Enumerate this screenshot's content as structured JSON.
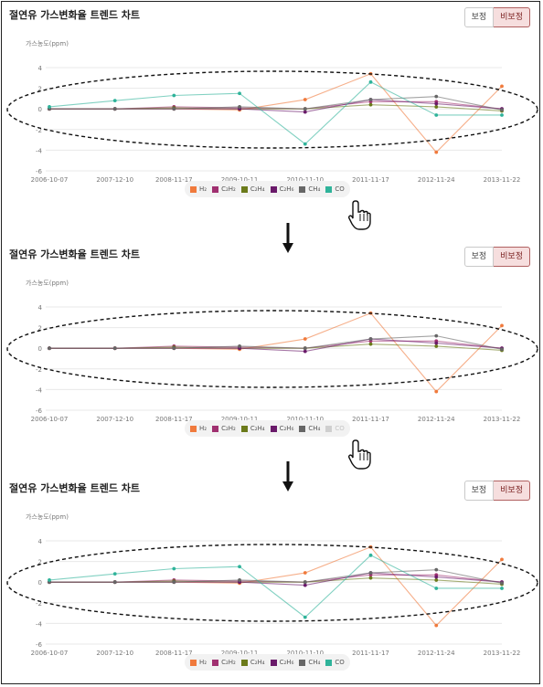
{
  "screens": [
    {
      "title": "절연유 가스변화율 트렌드 차트",
      "toggle": {
        "left": "보정",
        "right": "비보정",
        "active": "right"
      },
      "ylabel": "가스농도(ppm)",
      "hidden": [],
      "cursor_on": "CO"
    },
    {
      "title": "절연유 가스변화율 트렌드 차트",
      "toggle": {
        "left": "보정",
        "right": "비보정",
        "active": "right"
      },
      "ylabel": "가스농도(ppm)",
      "hidden": [
        "CO"
      ],
      "cursor_on": "CO"
    },
    {
      "title": "절연유 가스변화율 트렌드 차트",
      "toggle": {
        "left": "보정",
        "right": "비보정",
        "active": "right"
      },
      "ylabel": "가스농도(ppm)",
      "hidden": [],
      "cursor_on": ""
    }
  ],
  "chart_data": {
    "type": "line",
    "categories": [
      "2006-10-07",
      "2007-12-10",
      "2008-11-17",
      "2009-10-11",
      "2010-11-10",
      "2011-11-17",
      "2012-11-24",
      "2013-11-22"
    ],
    "x": [
      0,
      1,
      1.9,
      2.9,
      3.9,
      4.9,
      5.9,
      6.9
    ],
    "ylim": [
      -6,
      4
    ],
    "yticks": [
      4,
      2,
      0,
      -2,
      -4,
      -6
    ],
    "ylabel": "가스농도(ppm)",
    "grid": true,
    "legend_position": "bottom-center",
    "series": [
      {
        "name": "H₂",
        "color": "#f07a3c",
        "values": [
          0,
          0,
          0,
          -0.1,
          0.9,
          3.4,
          -4.2,
          2.2
        ]
      },
      {
        "name": "C₂H₂",
        "color": "#a03070",
        "values": [
          0,
          0,
          0.2,
          0.1,
          0,
          0.7,
          0.7,
          0
        ]
      },
      {
        "name": "C₂H₄",
        "color": "#6b7a1a",
        "values": [
          0,
          0,
          0.1,
          0,
          0,
          0.4,
          0.2,
          -0.2
        ]
      },
      {
        "name": "C₂H₆",
        "color": "#6a1a6a",
        "values": [
          0,
          0,
          0,
          0,
          -0.3,
          0.9,
          0.5,
          0
        ]
      },
      {
        "name": "CH₄",
        "color": "#666666",
        "values": [
          0,
          0,
          0,
          0.2,
          0,
          0.9,
          1.2,
          -0.1
        ]
      },
      {
        "name": "CO",
        "color": "#2fb39a",
        "values": [
          0.2,
          0.8,
          1.3,
          1.5,
          -3.4,
          2.6,
          -0.6,
          -0.6
        ]
      }
    ]
  },
  "legend_labels": [
    "H₂",
    "C₂H₂",
    "C₂H₄",
    "C₂H₆",
    "CH₄",
    "CO"
  ],
  "colors": {
    "ellipse": "#111111",
    "hidden_swatch": "#cfcfcf",
    "grid": "#e8e8e8",
    "axis_text": "#777777"
  }
}
